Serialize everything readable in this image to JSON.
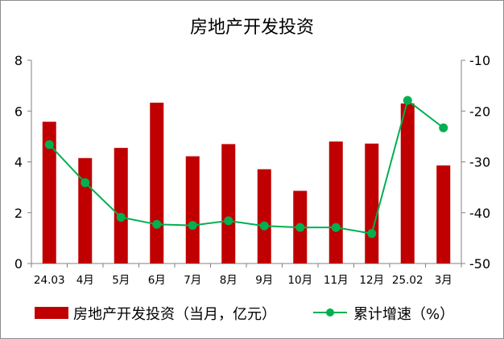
{
  "chart_data": {
    "type": "bar",
    "title": "房地产开发投资",
    "categories": [
      "24.03",
      "4月",
      "5月",
      "6月",
      "7月",
      "8月",
      "9月",
      "10月",
      "11月",
      "12月",
      "25.02",
      "3月"
    ],
    "series": [
      {
        "name": "房地产开发投资（当月，亿元）",
        "type": "bar",
        "axis": "left",
        "color": "#c00000",
        "values": [
          5.58,
          4.15,
          4.55,
          6.33,
          4.22,
          4.7,
          3.71,
          2.86,
          4.8,
          4.72,
          6.3,
          3.86
        ]
      },
      {
        "name": "累计增速（%）",
        "type": "line",
        "axis": "right",
        "color": "#00b050",
        "values": [
          -26.6,
          -34.1,
          -40.9,
          -42.3,
          -42.5,
          -41.6,
          -42.6,
          -42.9,
          -42.9,
          -44.1,
          -17.9,
          -23.3
        ]
      }
    ],
    "y_left": {
      "min": 0,
      "max": 8,
      "ticks": [
        0,
        2,
        4,
        6,
        8
      ]
    },
    "y_right": {
      "min": -50,
      "max": -10,
      "ticks": [
        -10,
        -20,
        -30,
        -40,
        -50
      ]
    },
    "grid": false,
    "legend_position": "bottom"
  }
}
